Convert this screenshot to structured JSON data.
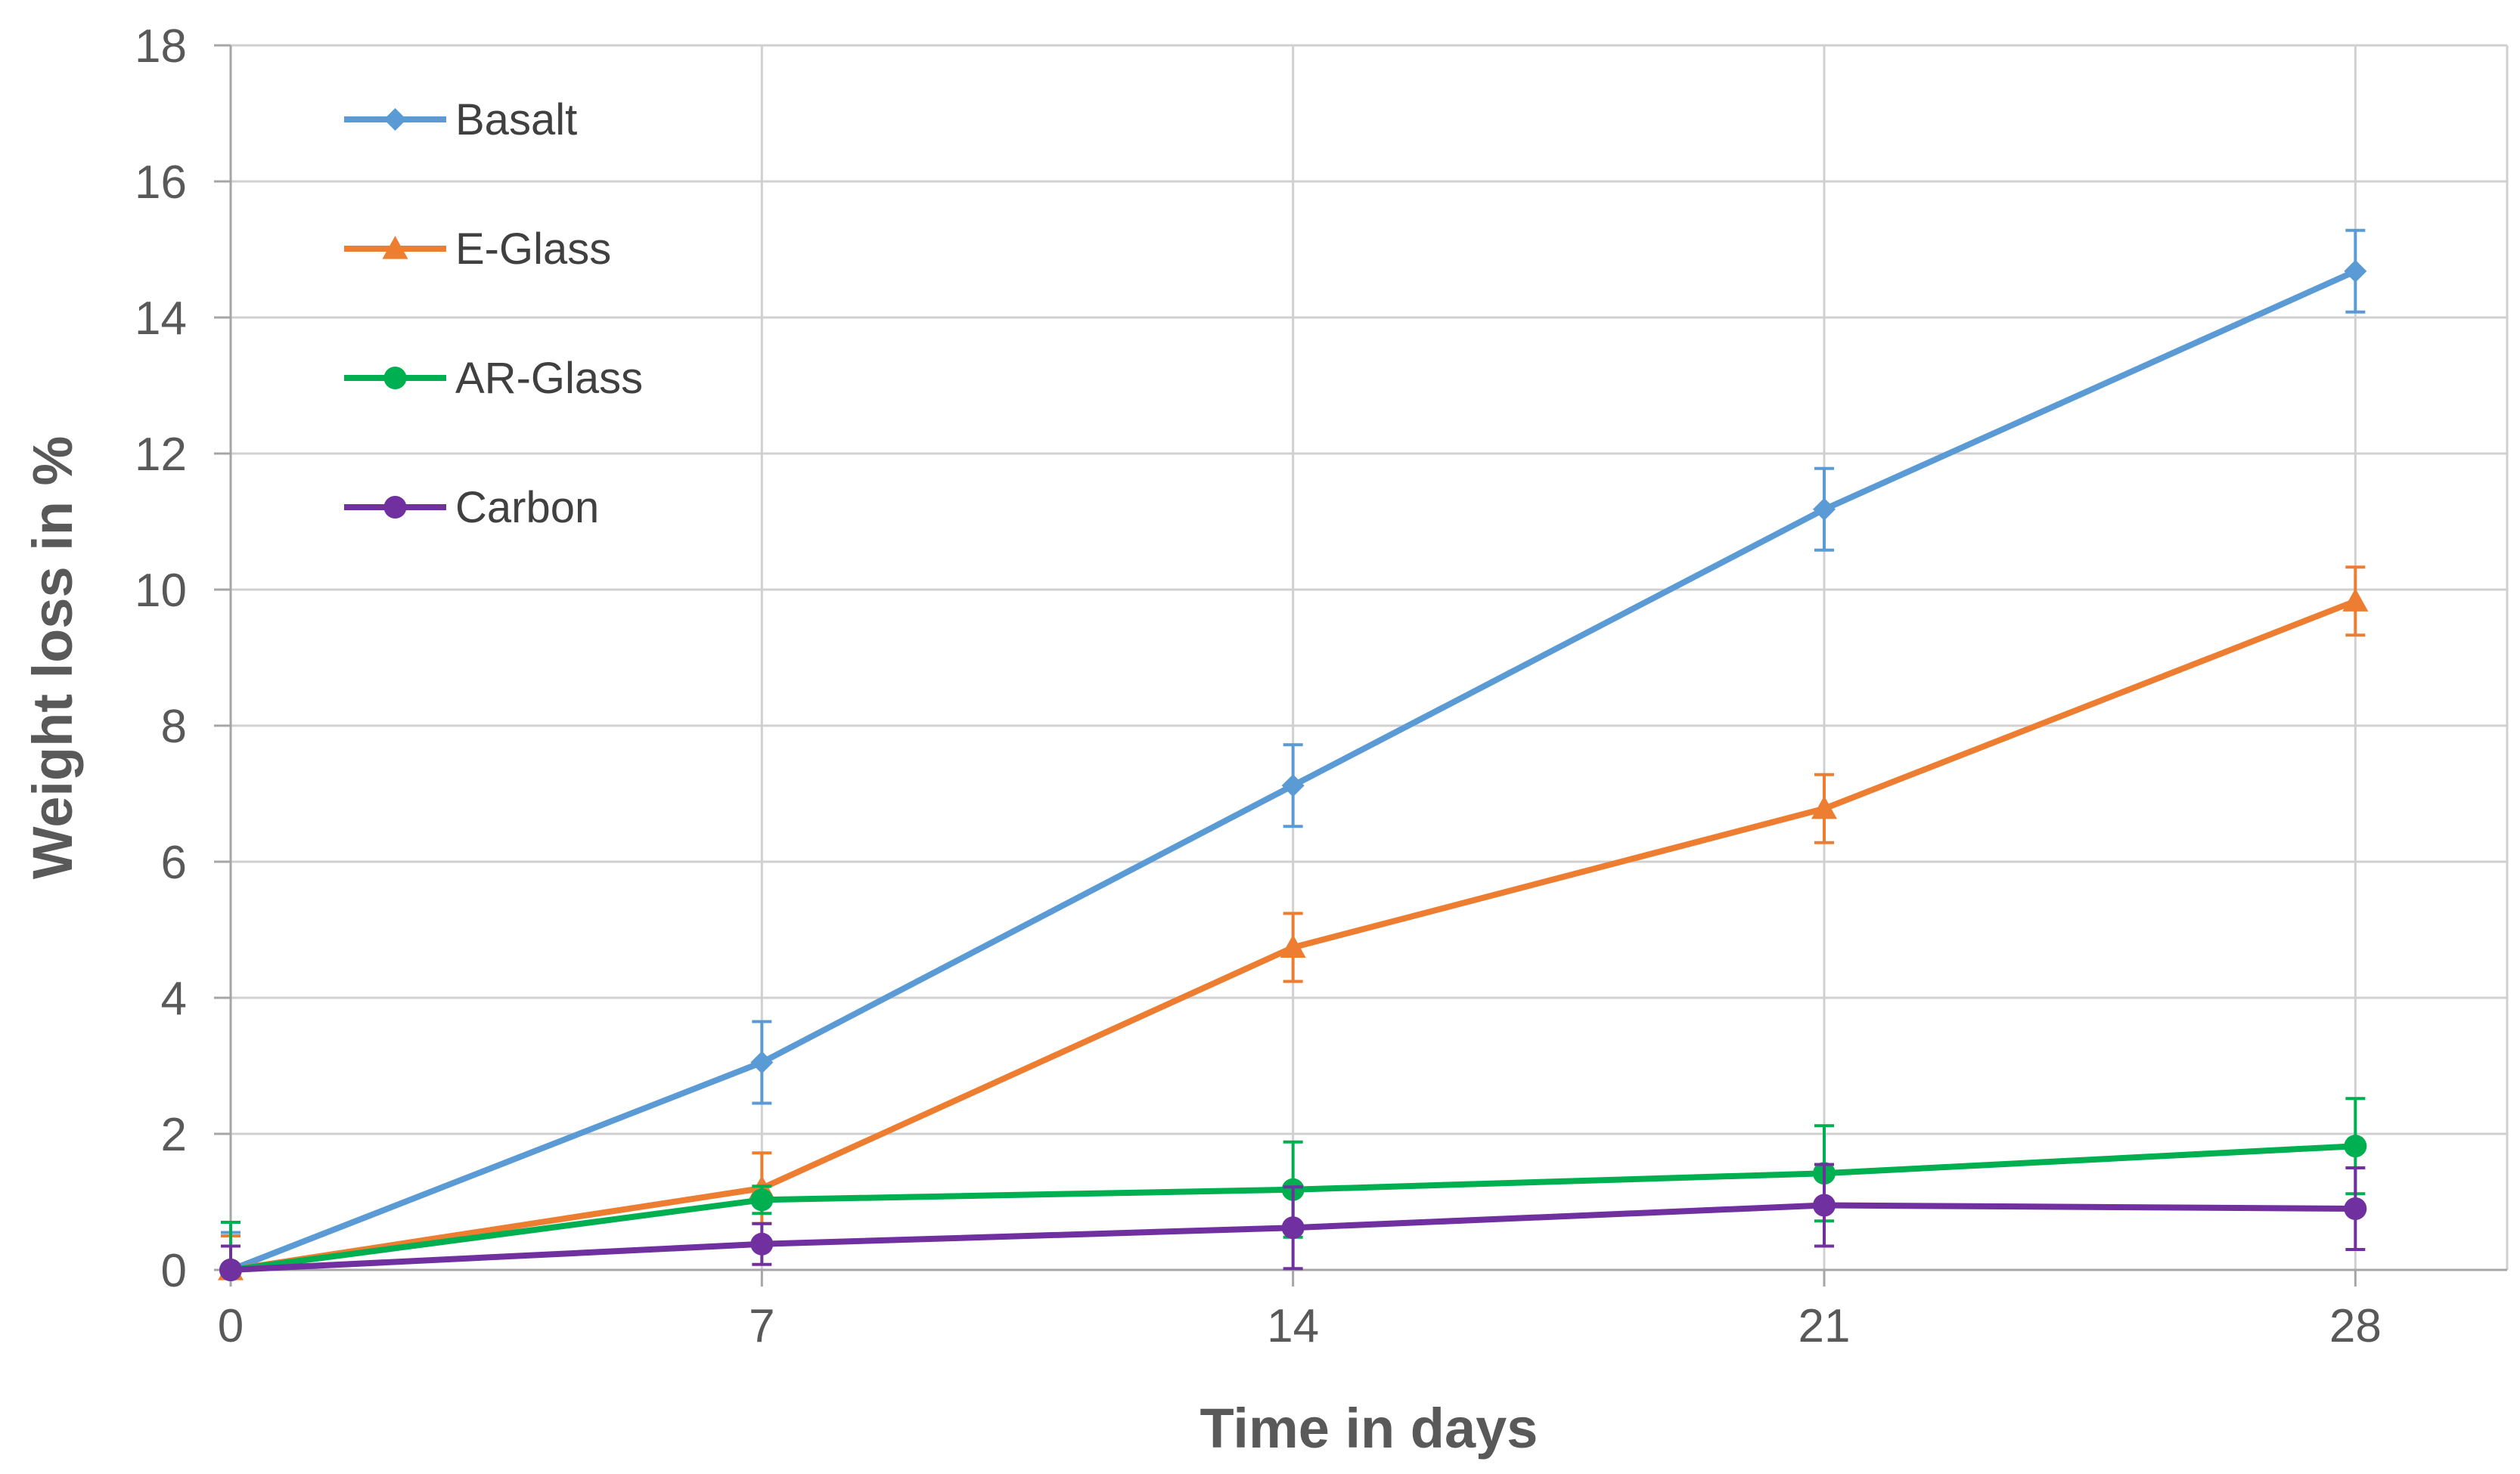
{
  "chart_data": {
    "type": "line",
    "xlabel": "Time in days",
    "ylabel": "Weight loss in %",
    "x": [
      0,
      7,
      14,
      21,
      28
    ],
    "xlim": [
      0,
      30
    ],
    "ylim": [
      0,
      18
    ],
    "xticks": [
      0,
      7,
      14,
      21,
      28
    ],
    "yticks": [
      0,
      2,
      4,
      6,
      8,
      10,
      12,
      14,
      16,
      18
    ],
    "grid": true,
    "legend_position": "top-left",
    "series": [
      {
        "name": "Basalt",
        "color": "#5B9BD5",
        "marker": "diamond",
        "values": [
          0,
          3.05,
          7.12,
          11.18,
          14.68
        ],
        "errors": [
          0.55,
          0.6,
          0.6,
          0.6,
          0.6
        ]
      },
      {
        "name": "E-Glass",
        "color": "#ED7D31",
        "marker": "triangle",
        "values": [
          0,
          1.2,
          4.74,
          6.78,
          9.83
        ],
        "errors": [
          0.5,
          0.52,
          0.5,
          0.5,
          0.5
        ]
      },
      {
        "name": "AR-Glass",
        "color": "#00B050",
        "marker": "circle",
        "values": [
          0,
          1.03,
          1.18,
          1.42,
          1.82
        ],
        "errors": [
          0.7,
          0.2,
          0.7,
          0.7,
          0.7
        ]
      },
      {
        "name": "Carbon",
        "color": "#7030A0",
        "marker": "circle",
        "values": [
          0,
          0.38,
          0.62,
          0.95,
          0.9
        ],
        "errors": [
          0.35,
          0.3,
          0.6,
          0.6,
          0.6
        ]
      }
    ]
  }
}
